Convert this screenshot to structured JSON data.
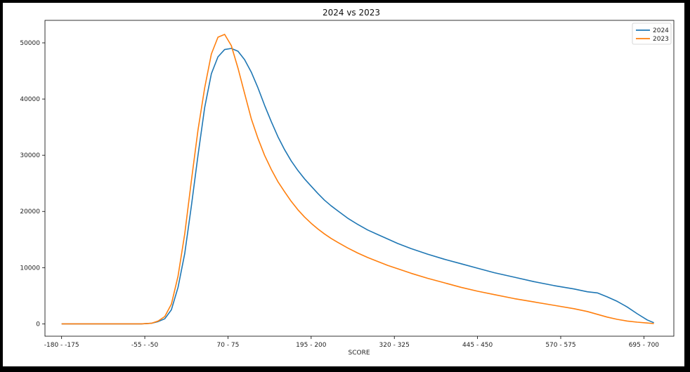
{
  "chart_data": {
    "type": "line",
    "title": "2024 vs 2023",
    "xlabel": "SCORE",
    "ylabel": "",
    "x_ticks": [
      "-180 - -175",
      "-55 - -50",
      "70 - 75",
      "195 - 200",
      "320 - 325",
      "445 - 450",
      "570 - 575",
      "695 - 700"
    ],
    "x_tick_values": [
      -180,
      -55,
      70,
      195,
      320,
      445,
      570,
      695
    ],
    "xlim": [
      -205,
      740
    ],
    "y_ticks": [
      0,
      10000,
      20000,
      30000,
      40000,
      50000
    ],
    "ylim": [
      -2200,
      54000
    ],
    "grid": false,
    "legend_position": "top-right",
    "series": [
      {
        "name": "2024",
        "color": "#1f77b4",
        "x": [
          -180,
          -120,
          -60,
          -45,
          -35,
          -25,
          -15,
          -5,
          5,
          15,
          25,
          35,
          45,
          55,
          65,
          75,
          85,
          95,
          105,
          115,
          125,
          135,
          145,
          155,
          165,
          175,
          185,
          195,
          205,
          215,
          225,
          235,
          250,
          265,
          280,
          295,
          310,
          325,
          345,
          370,
          395,
          420,
          445,
          470,
          500,
          530,
          560,
          590,
          610,
          625,
          640,
          655,
          670,
          685,
          700,
          710
        ],
        "y": [
          0,
          0,
          0,
          100,
          400,
          900,
          2500,
          6500,
          12500,
          21000,
          30000,
          38500,
          44500,
          47500,
          48800,
          49000,
          48500,
          47000,
          44800,
          42000,
          38900,
          36000,
          33300,
          31000,
          29000,
          27300,
          25800,
          24500,
          23200,
          22000,
          21000,
          20100,
          18800,
          17700,
          16700,
          15900,
          15100,
          14300,
          13400,
          12400,
          11500,
          10700,
          9900,
          9100,
          8300,
          7500,
          6800,
          6200,
          5700,
          5500,
          4800,
          4000,
          3000,
          1800,
          700,
          200
        ]
      },
      {
        "name": "2023",
        "color": "#ff7f0e",
        "x": [
          -180,
          -120,
          -60,
          -45,
          -35,
          -25,
          -15,
          -5,
          5,
          15,
          25,
          35,
          45,
          55,
          65,
          75,
          85,
          95,
          105,
          115,
          125,
          135,
          145,
          155,
          165,
          175,
          185,
          195,
          205,
          215,
          225,
          235,
          250,
          265,
          280,
          295,
          310,
          325,
          345,
          370,
          395,
          420,
          445,
          470,
          500,
          530,
          560,
          590,
          610,
          625,
          640,
          655,
          670,
          685,
          700,
          710
        ],
        "y": [
          0,
          0,
          0,
          100,
          500,
          1300,
          3500,
          8500,
          16000,
          25500,
          34500,
          42000,
          48000,
          51000,
          51500,
          49500,
          45500,
          41000,
          36500,
          33000,
          30000,
          27500,
          25300,
          23500,
          21800,
          20300,
          19000,
          17900,
          16900,
          16000,
          15200,
          14500,
          13500,
          12600,
          11800,
          11100,
          10400,
          9800,
          9000,
          8100,
          7300,
          6500,
          5800,
          5200,
          4500,
          3900,
          3300,
          2700,
          2200,
          1700,
          1200,
          800,
          500,
          300,
          150,
          50
        ]
      }
    ]
  }
}
